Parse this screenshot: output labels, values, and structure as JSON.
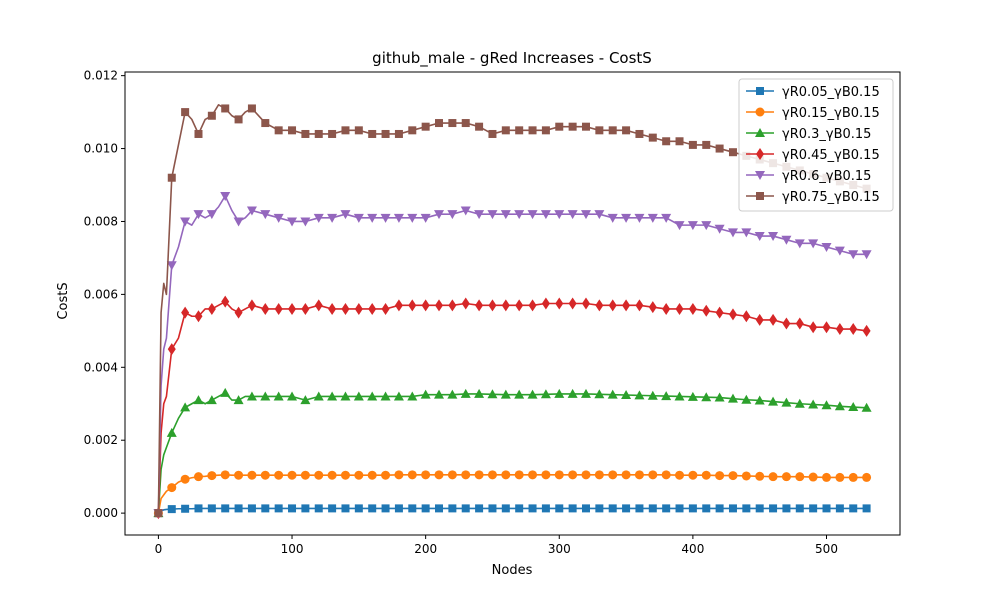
{
  "chart_data": {
    "type": "line",
    "title": "github_male - gRed Increases - CostS",
    "xlabel": "Nodes",
    "ylabel": "CostS",
    "xlim": [
      -25,
      555
    ],
    "ylim": [
      -0.0006,
      0.0121
    ],
    "xticks": [
      0,
      100,
      200,
      300,
      400,
      500
    ],
    "xtick_labels": [
      "0",
      "100",
      "200",
      "300",
      "400",
      "500"
    ],
    "yticks": [
      0.0,
      0.002,
      0.004,
      0.006,
      0.008,
      0.01,
      0.012
    ],
    "ytick_labels": [
      "0.000",
      "0.002",
      "0.004",
      "0.006",
      "0.008",
      "0.010",
      "0.012"
    ],
    "grid": false,
    "legend_position": "top-right",
    "x": [
      0,
      2,
      4,
      6,
      10,
      15,
      20,
      25,
      30,
      35,
      40,
      45,
      50,
      55,
      60,
      65,
      70,
      80,
      90,
      100,
      110,
      120,
      130,
      140,
      150,
      160,
      170,
      180,
      190,
      200,
      210,
      220,
      230,
      240,
      250,
      260,
      270,
      280,
      290,
      300,
      310,
      320,
      330,
      340,
      350,
      360,
      370,
      380,
      390,
      400,
      410,
      420,
      430,
      440,
      450,
      460,
      470,
      480,
      490,
      500,
      510,
      520,
      530
    ],
    "series": [
      {
        "name": "γR0.05_γB0.15",
        "color": "#1f77b4",
        "marker": "square",
        "values": [
          0.0,
          6e-05,
          9e-05,
          0.0001,
          0.00011,
          0.00012,
          0.00012,
          0.00012,
          0.00013,
          0.00013,
          0.00013,
          0.00013,
          0.00013,
          0.00013,
          0.00013,
          0.00013,
          0.00013,
          0.00013,
          0.00013,
          0.00013,
          0.00013,
          0.00013,
          0.00013,
          0.00013,
          0.00013,
          0.00013,
          0.00013,
          0.00013,
          0.00013,
          0.00013,
          0.00013,
          0.00013,
          0.00013,
          0.00013,
          0.00013,
          0.00013,
          0.00013,
          0.00013,
          0.00013,
          0.00013,
          0.00013,
          0.00013,
          0.00013,
          0.00013,
          0.00013,
          0.00013,
          0.00013,
          0.00013,
          0.00013,
          0.00013,
          0.00013,
          0.00013,
          0.00013,
          0.00013,
          0.00013,
          0.00013,
          0.00013,
          0.00013,
          0.00013,
          0.00013,
          0.00013,
          0.00013,
          0.00013
        ]
      },
      {
        "name": "γR0.15_γB0.15",
        "color": "#ff7f0e",
        "marker": "circle",
        "values": [
          0.0,
          0.0004,
          0.0005,
          0.0006,
          0.0007,
          0.00085,
          0.00093,
          0.00097,
          0.001,
          0.00101,
          0.00103,
          0.00104,
          0.00105,
          0.00104,
          0.00104,
          0.00104,
          0.00104,
          0.00104,
          0.00104,
          0.00104,
          0.00104,
          0.00104,
          0.00104,
          0.00104,
          0.00104,
          0.00104,
          0.00104,
          0.00105,
          0.00105,
          0.00105,
          0.00105,
          0.00105,
          0.00105,
          0.00105,
          0.00105,
          0.00105,
          0.00105,
          0.00105,
          0.00105,
          0.00105,
          0.00105,
          0.00105,
          0.00105,
          0.00105,
          0.00105,
          0.00105,
          0.00105,
          0.00105,
          0.00104,
          0.00104,
          0.00104,
          0.00103,
          0.00103,
          0.00102,
          0.00101,
          0.001,
          0.001,
          0.001,
          0.00099,
          0.00098,
          0.00098,
          0.00098,
          0.00098
        ]
      },
      {
        "name": "γR0.3_γB0.15",
        "color": "#2ca02c",
        "marker": "triangle-up",
        "values": [
          0.0,
          0.0012,
          0.0016,
          0.0018,
          0.0022,
          0.0026,
          0.0029,
          0.003,
          0.0031,
          0.003,
          0.0031,
          0.0032,
          0.0033,
          0.0031,
          0.0031,
          0.0032,
          0.0032,
          0.0032,
          0.0032,
          0.0032,
          0.0031,
          0.0032,
          0.0032,
          0.0032,
          0.0032,
          0.0032,
          0.0032,
          0.0032,
          0.0032,
          0.00325,
          0.00325,
          0.00325,
          0.00327,
          0.00327,
          0.00326,
          0.00325,
          0.00325,
          0.00325,
          0.00326,
          0.00327,
          0.00327,
          0.00327,
          0.00326,
          0.00325,
          0.00324,
          0.00323,
          0.00322,
          0.00321,
          0.0032,
          0.00319,
          0.00318,
          0.00317,
          0.00314,
          0.00311,
          0.00309,
          0.00306,
          0.00303,
          0.003,
          0.00298,
          0.00296,
          0.00293,
          0.00291,
          0.00289
        ]
      },
      {
        "name": "γR0.45_γB0.15",
        "color": "#d62728",
        "marker": "diamond",
        "values": [
          0.0,
          0.0022,
          0.003,
          0.0032,
          0.0045,
          0.0048,
          0.0055,
          0.0054,
          0.0054,
          0.0056,
          0.0056,
          0.0057,
          0.0058,
          0.0056,
          0.0055,
          0.0056,
          0.0057,
          0.0056,
          0.0056,
          0.0056,
          0.0056,
          0.0057,
          0.0056,
          0.0056,
          0.0056,
          0.0056,
          0.0056,
          0.0057,
          0.0057,
          0.0057,
          0.0057,
          0.0057,
          0.00575,
          0.0057,
          0.0057,
          0.0057,
          0.0057,
          0.0057,
          0.00575,
          0.00575,
          0.00575,
          0.00575,
          0.0057,
          0.0057,
          0.0057,
          0.0057,
          0.00565,
          0.0056,
          0.0056,
          0.0056,
          0.00555,
          0.0055,
          0.00545,
          0.0054,
          0.0053,
          0.0053,
          0.0052,
          0.0052,
          0.0051,
          0.0051,
          0.00505,
          0.00505,
          0.005
        ]
      },
      {
        "name": "γR0.6_γB0.15",
        "color": "#9467bd",
        "marker": "triangle-down",
        "values": [
          0.0,
          0.0035,
          0.0045,
          0.0048,
          0.0068,
          0.0073,
          0.008,
          0.0079,
          0.0082,
          0.0081,
          0.0082,
          0.0084,
          0.0087,
          0.0083,
          0.008,
          0.0081,
          0.0083,
          0.0082,
          0.0081,
          0.008,
          0.008,
          0.0081,
          0.0081,
          0.0082,
          0.0081,
          0.0081,
          0.0081,
          0.0081,
          0.0081,
          0.0081,
          0.0082,
          0.0082,
          0.0083,
          0.0082,
          0.0082,
          0.0082,
          0.0082,
          0.0082,
          0.0082,
          0.0082,
          0.0082,
          0.0082,
          0.0082,
          0.0081,
          0.0081,
          0.0081,
          0.0081,
          0.0081,
          0.0079,
          0.0079,
          0.0079,
          0.0078,
          0.0077,
          0.0077,
          0.0076,
          0.0076,
          0.0075,
          0.0074,
          0.0074,
          0.0073,
          0.0072,
          0.0071,
          0.0071
        ]
      },
      {
        "name": "γR0.75_γB0.15",
        "color": "#8c564b",
        "marker": "square",
        "values": [
          0.0,
          0.0055,
          0.0063,
          0.006,
          0.0092,
          0.0101,
          0.011,
          0.0108,
          0.0104,
          0.0108,
          0.0109,
          0.0112,
          0.0111,
          0.0109,
          0.0108,
          0.011,
          0.0111,
          0.0107,
          0.0105,
          0.0105,
          0.0104,
          0.0104,
          0.0104,
          0.0105,
          0.0105,
          0.0104,
          0.0104,
          0.0104,
          0.0105,
          0.0106,
          0.0107,
          0.0107,
          0.0107,
          0.0106,
          0.0104,
          0.0105,
          0.0105,
          0.0105,
          0.0105,
          0.0106,
          0.0106,
          0.0106,
          0.0105,
          0.0105,
          0.0105,
          0.0104,
          0.0103,
          0.0102,
          0.0102,
          0.0101,
          0.0101,
          0.01,
          0.0099,
          0.0098,
          0.0097,
          0.0096,
          0.0095,
          0.0094,
          0.0093,
          0.0092,
          0.0091,
          0.009,
          0.0089
        ]
      }
    ]
  }
}
